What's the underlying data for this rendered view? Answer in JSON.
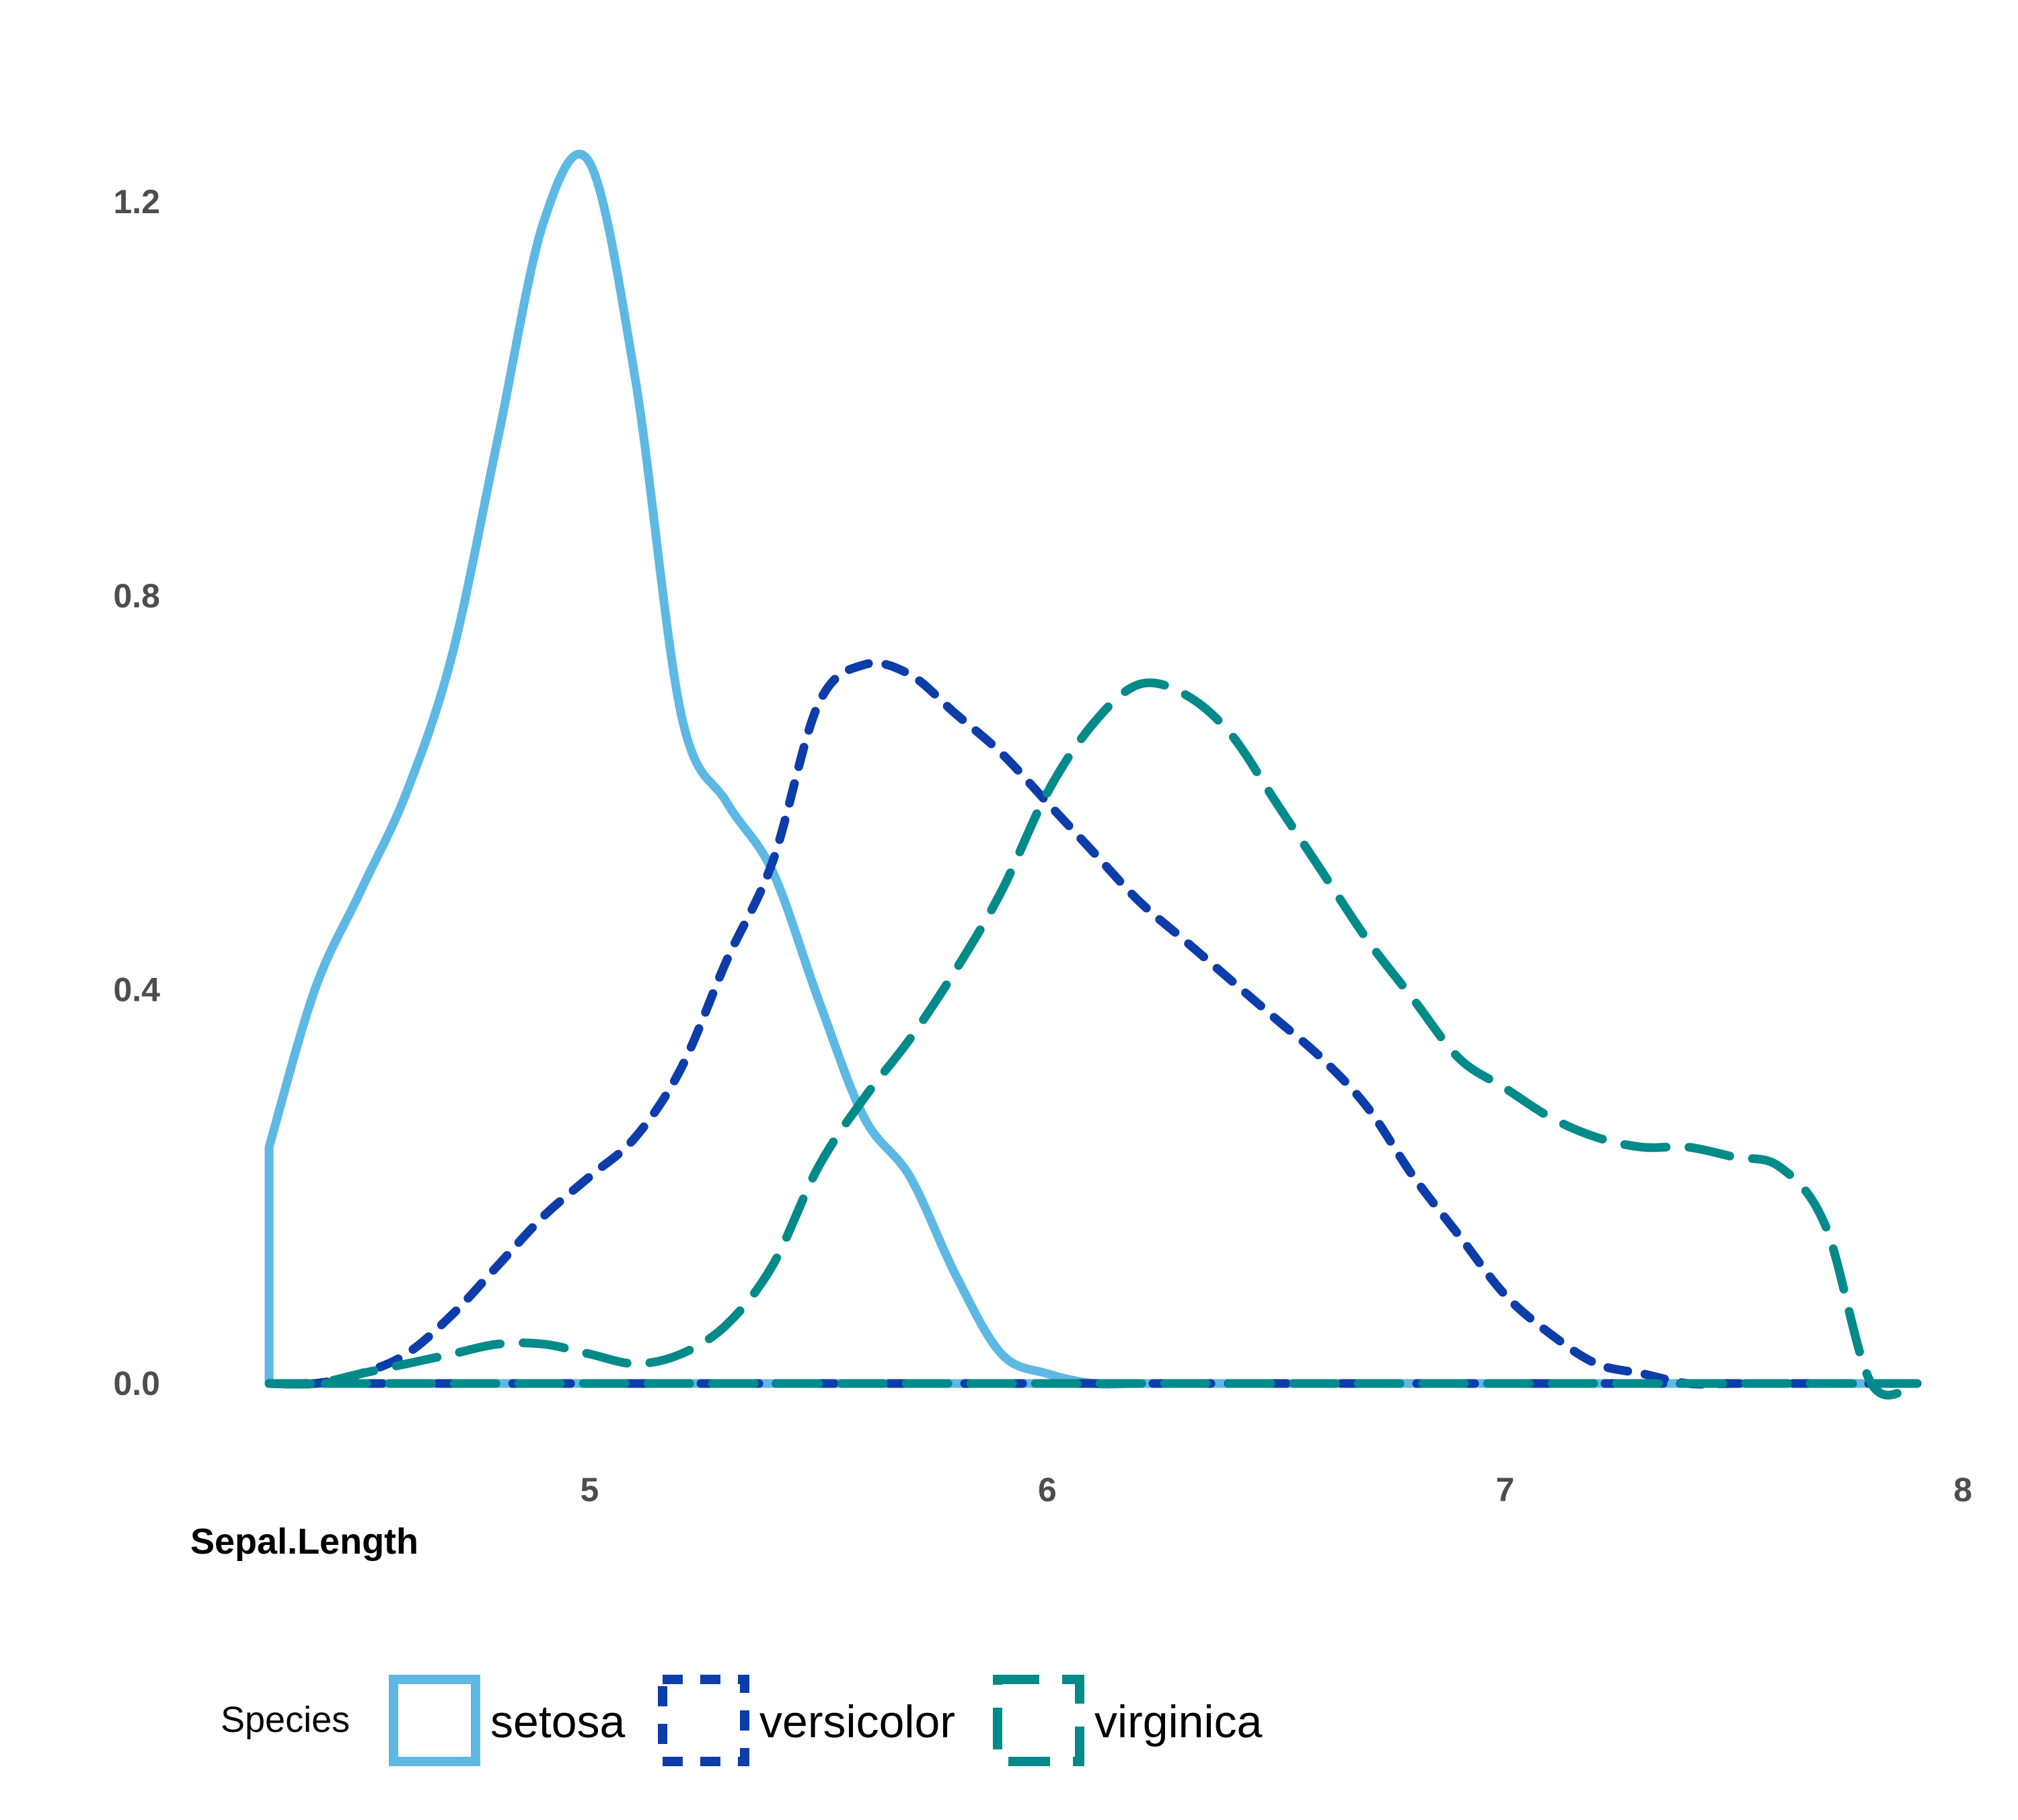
{
  "chart_data": {
    "type": "area",
    "title": "",
    "xlabel": "Sepal.Length",
    "ylabel": "",
    "xlim": [
      4.3,
      7.9
    ],
    "ylim": [
      0,
      1.25
    ],
    "x_ticks": [
      5,
      6,
      7,
      8
    ],
    "x_tick_labels": [
      "5",
      "6",
      "7",
      "8"
    ],
    "y_ticks": [
      0.0,
      0.4,
      0.8,
      1.2
    ],
    "y_tick_labels": [
      "0.0",
      "0.4",
      "0.8",
      "1.2"
    ],
    "grid": false,
    "legend": {
      "title": "Species",
      "position": "bottom"
    },
    "series": [
      {
        "name": "setosa",
        "color": "#5DB8E4",
        "dash": "solid",
        "x": [
          4.3,
          4.4,
          4.5,
          4.6,
          4.7,
          4.8,
          4.9,
          5.0,
          5.1,
          5.2,
          5.3,
          5.4,
          5.5,
          5.6,
          5.7,
          5.8,
          5.9,
          6.0,
          6.1,
          6.2,
          6.4,
          6.6,
          6.8,
          7.0,
          7.2,
          7.4,
          7.6,
          7.9
        ],
        "y": [
          0.24,
          0.4,
          0.5,
          0.6,
          0.74,
          0.96,
          1.18,
          1.24,
          1.02,
          0.68,
          0.59,
          0.52,
          0.39,
          0.27,
          0.21,
          0.11,
          0.03,
          0.01,
          0.0,
          0.0,
          0.0,
          0.0,
          0.0,
          0.0,
          0.0,
          0.0,
          0.0,
          0.0
        ]
      },
      {
        "name": "versicolor",
        "color": "#0D3CAB",
        "dash": "dashed",
        "x": [
          4.3,
          4.4,
          4.5,
          4.6,
          4.7,
          4.8,
          4.9,
          5.0,
          5.1,
          5.2,
          5.3,
          5.4,
          5.5,
          5.6,
          5.7,
          5.8,
          5.9,
          6.0,
          6.1,
          6.2,
          6.3,
          6.4,
          6.5,
          6.6,
          6.7,
          6.8,
          6.9,
          7.0,
          7.1,
          7.2,
          7.3,
          7.4,
          7.5,
          7.6,
          7.7,
          7.8,
          7.9
        ],
        "y": [
          0.0,
          0.0,
          0.01,
          0.03,
          0.07,
          0.12,
          0.17,
          0.21,
          0.25,
          0.32,
          0.43,
          0.53,
          0.69,
          0.73,
          0.72,
          0.68,
          0.64,
          0.59,
          0.54,
          0.49,
          0.45,
          0.41,
          0.37,
          0.33,
          0.28,
          0.21,
          0.15,
          0.09,
          0.05,
          0.02,
          0.01,
          0.0,
          0.0,
          0.0,
          0.0,
          0.0,
          0.0
        ]
      },
      {
        "name": "virginica",
        "color": "#008A8A",
        "dash": "longdash",
        "x": [
          4.3,
          4.4,
          4.5,
          4.6,
          4.7,
          4.8,
          4.9,
          5.0,
          5.1,
          5.2,
          5.3,
          5.4,
          5.5,
          5.6,
          5.7,
          5.8,
          5.9,
          6.0,
          6.1,
          6.2,
          6.3,
          6.4,
          6.5,
          6.6,
          6.7,
          6.8,
          6.9,
          7.0,
          7.1,
          7.2,
          7.3,
          7.4,
          7.5,
          7.6,
          7.7,
          7.8,
          7.9
        ],
        "y": [
          0.0,
          0.0,
          0.01,
          0.02,
          0.03,
          0.04,
          0.04,
          0.03,
          0.02,
          0.03,
          0.06,
          0.12,
          0.22,
          0.29,
          0.35,
          0.42,
          0.5,
          0.6,
          0.67,
          0.71,
          0.7,
          0.66,
          0.59,
          0.52,
          0.45,
          0.39,
          0.33,
          0.3,
          0.27,
          0.25,
          0.24,
          0.24,
          0.23,
          0.22,
          0.16,
          0.0,
          0.0
        ]
      }
    ]
  }
}
